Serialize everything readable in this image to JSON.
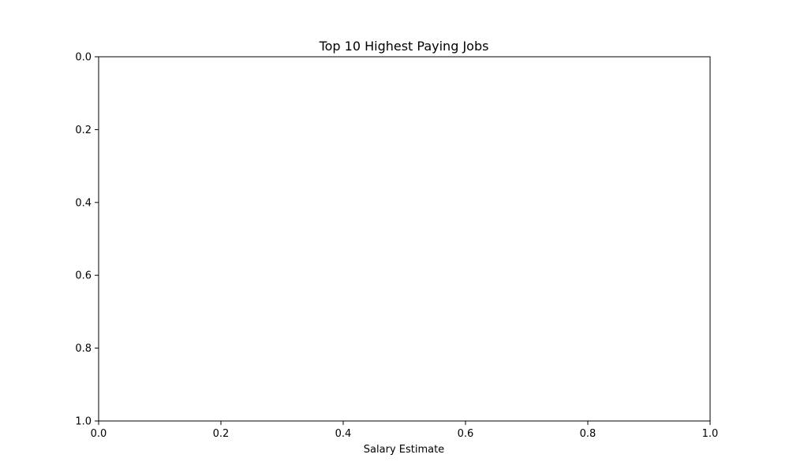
{
  "chart_data": {
    "type": "bar",
    "title": "Top 10 Highest Paying Jobs",
    "xlabel": "Salary Estimate",
    "ylabel": "",
    "categories": [],
    "values": [],
    "xlim": [
      0.0,
      1.0
    ],
    "ylim": [
      0.0,
      1.0
    ],
    "y_inverted": true,
    "x_ticks": [
      "0.0",
      "0.2",
      "0.4",
      "0.6",
      "0.8",
      "1.0"
    ],
    "y_ticks": [
      "0.0",
      "0.2",
      "0.4",
      "0.6",
      "0.8",
      "1.0"
    ],
    "grid": false,
    "legend": "none",
    "frame_color": "#000000",
    "text_color": "#000000",
    "background": "#ffffff"
  }
}
